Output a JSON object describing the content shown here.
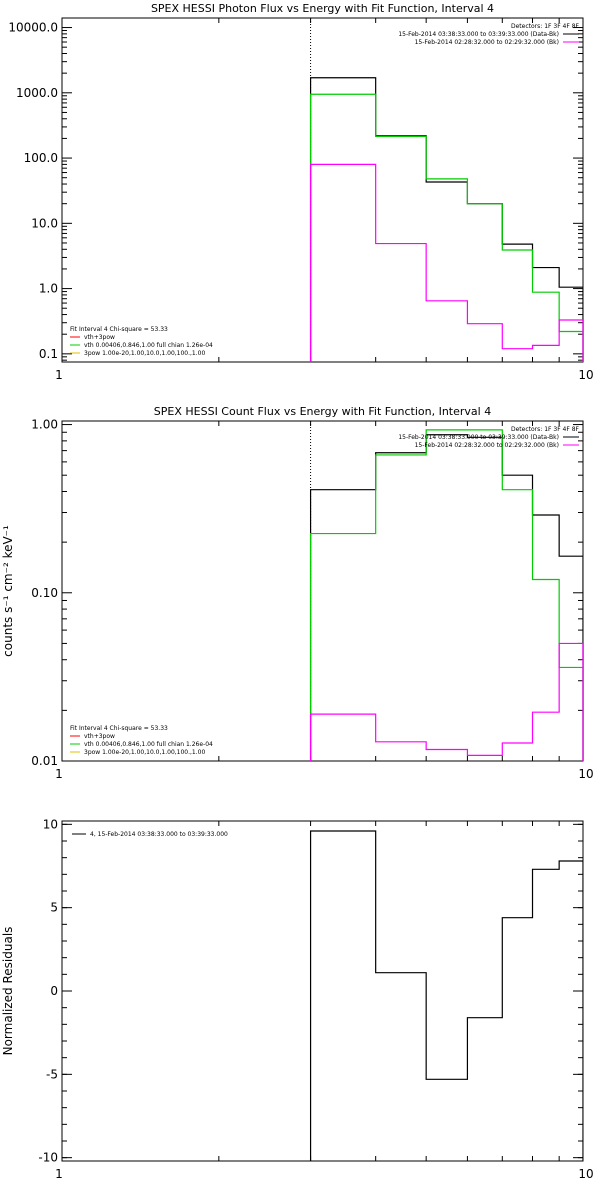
{
  "chart_data": [
    {
      "type": "line",
      "title": "SPEX HESSI Photon Flux vs Energy with Fit Function, Interval 4",
      "xlabel": "",
      "ylabel": "",
      "xscale": "log",
      "yscale": "log",
      "xlim": [
        1,
        10
      ],
      "ylim": [
        0.075,
        14000
      ],
      "x_ticks": [
        1,
        10
      ],
      "x_tick_labels": [
        "1",
        "10"
      ],
      "y_ticks": [
        0.1,
        1,
        10,
        100,
        1000,
        10000
      ],
      "y_tick_labels": [
        "0.1",
        "1.0",
        "10.0",
        "100.0",
        "1000.0",
        "10000.0"
      ],
      "vline_x": 3,
      "bin_edges": [
        3,
        4,
        5,
        6,
        7,
        8,
        9,
        10
      ],
      "series": [
        {
          "name": "15-Feb-2014 03:38:33.000 to 03:39:33.000 (Data-Bk)",
          "color": "#000000",
          "values": [
            1700,
            220,
            43,
            20,
            4.8,
            2.1,
            1.05
          ]
        },
        {
          "name": "vth",
          "color": "#00cc00",
          "values": [
            950,
            215,
            48,
            20,
            3.9,
            0.88,
            0.22
          ]
        },
        {
          "name": "15-Feb-2014 02:28:32.000 to 02:29:32.000 (Bk)",
          "color": "#ff00ff",
          "values": [
            80,
            4.9,
            0.65,
            0.29,
            0.12,
            0.135,
            0.33
          ]
        }
      ],
      "legend_top": {
        "title": "Detectors: 1F 3F 4F 8F",
        "entries": [
          {
            "text": "15-Feb-2014 03:38:33.000 to 03:39:33.000 (Data-Bk)",
            "color": "#000000"
          },
          {
            "text": "15-Feb-2014 02:28:32.000 to 02:29:32.000 (Bk)",
            "color": "#ff00ff"
          }
        ]
      },
      "legend_bottom": {
        "title": "Fit Interval 4   Chi-square = 53.33",
        "entries": [
          {
            "text": "vth+3pow",
            "color": "#ff0000"
          },
          {
            "text": "vth 0.00406,0.846,1.00  full chian 1.26e-04",
            "color": "#00cc00"
          },
          {
            "text": "3pow 1.00e-20,1.00,10.0,1.00,100.,1.00",
            "color": "#e0c000"
          }
        ]
      }
    },
    {
      "type": "line",
      "title": "SPEX HESSI Count Flux vs Energy with Fit Function, Interval 4",
      "xlabel": "",
      "ylabel": "counts s⁻¹ cm⁻² keV⁻¹",
      "xscale": "log",
      "yscale": "log",
      "xlim": [
        1,
        10
      ],
      "ylim": [
        0.01,
        1.05
      ],
      "x_ticks": [
        1,
        10
      ],
      "x_tick_labels": [
        "1",
        "10"
      ],
      "y_ticks": [
        0.01,
        0.1,
        1
      ],
      "y_tick_labels": [
        "0.01",
        "0.10",
        "1.00"
      ],
      "vline_x": 3,
      "bin_edges": [
        3,
        4,
        5,
        6,
        7,
        8,
        9,
        10
      ],
      "series": [
        {
          "name": "15-Feb-2014 03:38:33.000 to 03:39:33.000 (Data-Bk)",
          "color": "#000000",
          "values": [
            0.41,
            0.68,
            0.87,
            0.84,
            0.5,
            0.29,
            0.165
          ]
        },
        {
          "name": "vth",
          "color": "#00cc00",
          "values": [
            0.225,
            0.66,
            0.93,
            0.93,
            0.41,
            0.12,
            0.036
          ]
        },
        {
          "name": "15-Feb-2014 02:28:32.000 to 02:29:32.000 (Bk)",
          "color": "#ff00ff",
          "values": [
            0.019,
            0.013,
            0.0117,
            0.0108,
            0.0128,
            0.0195,
            0.05
          ]
        }
      ],
      "legend_top": {
        "title": "Detectors: 1F 3F 4F 8F",
        "entries": [
          {
            "text": "15-Feb-2014 03:38:33.000 to 03:39:33.000 (Data-Bk)",
            "color": "#000000"
          },
          {
            "text": "15-Feb-2014 02:28:32.000 to 02:29:32.000 (Bk)",
            "color": "#ff00ff"
          }
        ]
      },
      "legend_bottom": {
        "title": "Fit Interval 4   Chi-square = 53.33",
        "entries": [
          {
            "text": "vth+3pow",
            "color": "#ff0000"
          },
          {
            "text": "vth 0.00406,0.846,1.00  full chian 1.26e-04",
            "color": "#00cc00"
          },
          {
            "text": "3pow 1.00e-20,1.00,10.0,1.00,100.,1.00",
            "color": "#e0c000"
          }
        ]
      }
    },
    {
      "type": "line",
      "title": "",
      "xlabel": "",
      "ylabel": "Normalized Residuals",
      "xscale": "log",
      "yscale": "linear",
      "xlim": [
        1,
        10
      ],
      "ylim": [
        -10.2,
        10.2
      ],
      "x_ticks": [
        1,
        10
      ],
      "x_tick_labels": [
        "1",
        "10"
      ],
      "y_ticks": [
        -10,
        -5,
        0,
        5,
        10
      ],
      "y_tick_labels": [
        "-10",
        "-5",
        "0",
        "5",
        "10"
      ],
      "bin_edges": [
        3,
        4,
        5,
        6,
        7,
        8,
        9,
        10
      ],
      "series": [
        {
          "name": "4, 15-Feb-2014 03:38:33.000 to 03:39:33.000",
          "color": "#000000",
          "values": [
            9.6,
            1.1,
            -5.3,
            -1.6,
            4.4,
            7.3,
            7.8
          ]
        }
      ],
      "legend_top": {
        "title": "",
        "entries": [
          {
            "text": "4, 15-Feb-2014 03:38:33.000 to 03:39:33.000",
            "color": "#000000"
          }
        ]
      }
    }
  ]
}
